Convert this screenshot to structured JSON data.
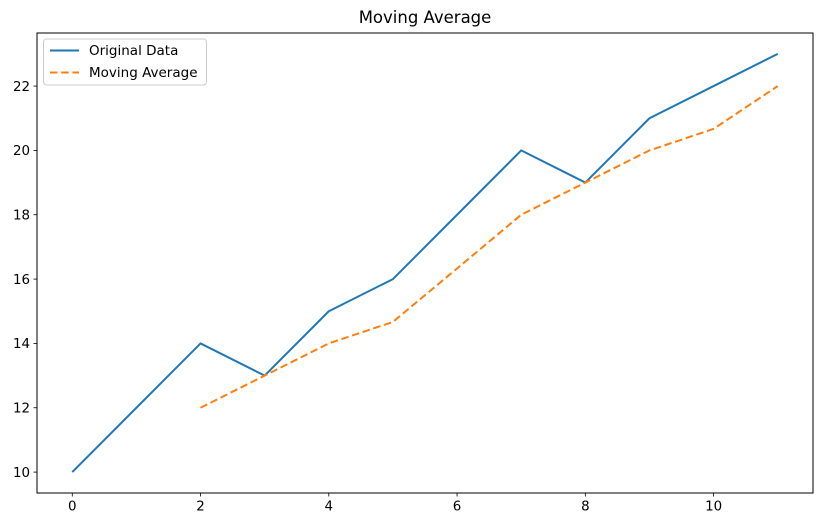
{
  "chart_data": {
    "type": "line",
    "title": "Moving Average",
    "xlabel": "",
    "ylabel": "",
    "grid": false,
    "legend_position": "upper left",
    "xlim": [
      -0.55,
      11.55
    ],
    "ylim": [
      9.35,
      23.65
    ],
    "xticks": [
      0,
      2,
      4,
      6,
      8,
      10
    ],
    "yticks": [
      10,
      12,
      14,
      16,
      18,
      20,
      22
    ],
    "series": [
      {
        "name": "Original Data",
        "color": "#1f77b4",
        "style": "solid",
        "x": [
          0,
          1,
          2,
          3,
          4,
          5,
          6,
          7,
          8,
          9,
          10,
          11
        ],
        "values": [
          10,
          12,
          14,
          13,
          15,
          16,
          18,
          20,
          19,
          21,
          22,
          23
        ]
      },
      {
        "name": "Moving Average",
        "color": "#ff7f0e",
        "style": "dashed",
        "x": [
          2,
          3,
          4,
          5,
          6,
          7,
          8,
          9,
          10,
          11
        ],
        "values": [
          12,
          13,
          14,
          14.67,
          16.33,
          18,
          19,
          20,
          20.67,
          22
        ]
      }
    ]
  }
}
